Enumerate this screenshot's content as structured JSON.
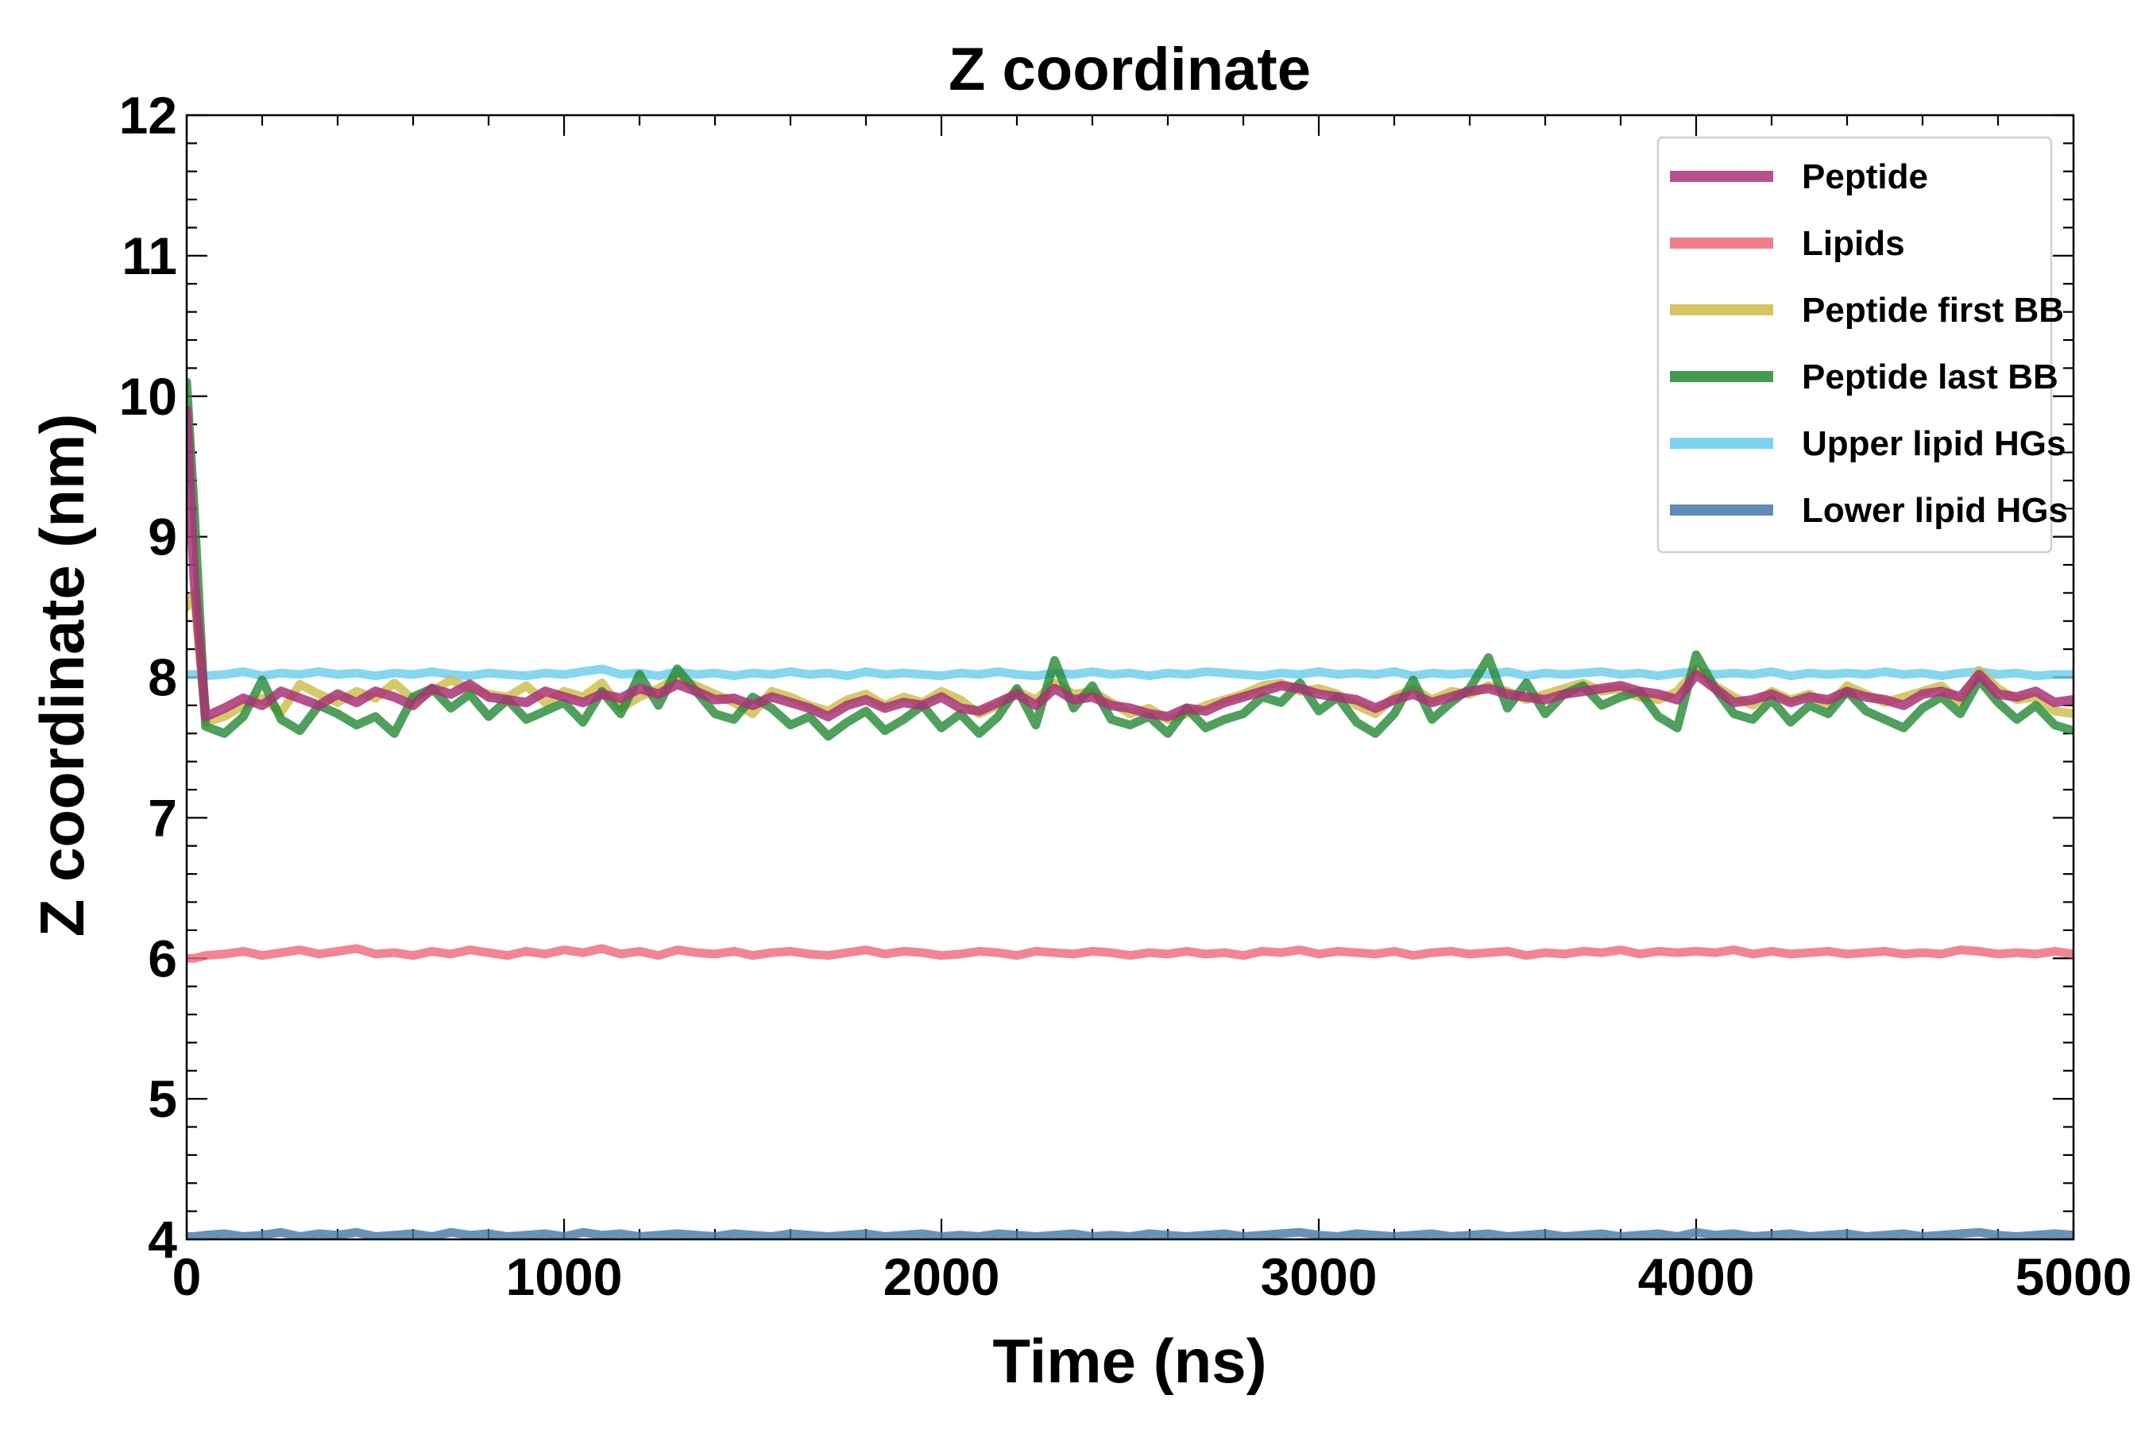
{
  "chart_data": {
    "type": "line",
    "title": "Z coordinate",
    "xlabel": "Time (ns)",
    "ylabel": "Z coordinate (nm)",
    "xlim": [
      0,
      5000
    ],
    "ylim": [
      4,
      12
    ],
    "xticks": [
      0,
      1000,
      2000,
      3000,
      4000,
      5000
    ],
    "yticks": [
      4,
      5,
      6,
      7,
      8,
      9,
      10,
      11,
      12
    ],
    "x_minor_step": 200,
    "y_minor_step": 0.2,
    "grid": false,
    "legend_position": "top-right",
    "x": [
      0,
      20,
      50,
      100,
      150,
      200,
      250,
      300,
      350,
      400,
      450,
      500,
      550,
      600,
      650,
      700,
      750,
      800,
      850,
      900,
      950,
      1000,
      1050,
      1100,
      1150,
      1200,
      1250,
      1300,
      1350,
      1400,
      1450,
      1500,
      1550,
      1600,
      1650,
      1700,
      1750,
      1800,
      1850,
      1900,
      1950,
      2000,
      2050,
      2100,
      2150,
      2200,
      2250,
      2300,
      2350,
      2400,
      2450,
      2500,
      2550,
      2600,
      2650,
      2700,
      2750,
      2800,
      2850,
      2900,
      2950,
      3000,
      3050,
      3100,
      3150,
      3200,
      3250,
      3300,
      3350,
      3400,
      3450,
      3500,
      3550,
      3600,
      3650,
      3700,
      3750,
      3800,
      3850,
      3900,
      3950,
      4000,
      4050,
      4100,
      4150,
      4200,
      4250,
      4300,
      4350,
      4400,
      4450,
      4500,
      4550,
      4600,
      4650,
      4700,
      4750,
      4800,
      4850,
      4900,
      4950,
      5000
    ],
    "series": [
      {
        "name": "Peptide",
        "color": "#aa3377",
        "values": [
          9.9,
          8.7,
          7.72,
          7.78,
          7.85,
          7.8,
          7.9,
          7.85,
          7.8,
          7.88,
          7.82,
          7.9,
          7.86,
          7.8,
          7.92,
          7.88,
          7.95,
          7.86,
          7.84,
          7.82,
          7.9,
          7.86,
          7.82,
          7.88,
          7.85,
          7.92,
          7.88,
          7.95,
          7.9,
          7.84,
          7.85,
          7.8,
          7.86,
          7.82,
          7.78,
          7.72,
          7.8,
          7.84,
          7.78,
          7.82,
          7.8,
          7.86,
          7.78,
          7.76,
          7.82,
          7.88,
          7.8,
          7.92,
          7.84,
          7.86,
          7.8,
          7.78,
          7.74,
          7.72,
          7.78,
          7.76,
          7.82,
          7.86,
          7.9,
          7.94,
          7.92,
          7.88,
          7.86,
          7.84,
          7.78,
          7.84,
          7.88,
          7.82,
          7.86,
          7.9,
          7.92,
          7.88,
          7.86,
          7.84,
          7.88,
          7.9,
          7.92,
          7.94,
          7.9,
          7.88,
          7.84,
          8.02,
          7.92,
          7.82,
          7.84,
          7.88,
          7.82,
          7.86,
          7.84,
          7.9,
          7.86,
          7.84,
          7.8,
          7.88,
          7.9,
          7.86,
          8.02,
          7.88,
          7.86,
          7.9,
          7.82,
          7.84
        ]
      },
      {
        "name": "Lipids",
        "color": "#ee6677",
        "values": [
          6.0,
          6.0,
          6.02,
          6.03,
          6.05,
          6.02,
          6.04,
          6.06,
          6.03,
          6.05,
          6.07,
          6.03,
          6.04,
          6.02,
          6.05,
          6.03,
          6.06,
          6.04,
          6.02,
          6.05,
          6.03,
          6.06,
          6.04,
          6.07,
          6.03,
          6.05,
          6.02,
          6.06,
          6.04,
          6.03,
          6.05,
          6.02,
          6.04,
          6.05,
          6.03,
          6.02,
          6.04,
          6.06,
          6.03,
          6.05,
          6.04,
          6.02,
          6.03,
          6.05,
          6.04,
          6.02,
          6.05,
          6.04,
          6.03,
          6.05,
          6.04,
          6.02,
          6.04,
          6.03,
          6.05,
          6.03,
          6.04,
          6.02,
          6.05,
          6.04,
          6.06,
          6.03,
          6.05,
          6.04,
          6.03,
          6.05,
          6.02,
          6.04,
          6.05,
          6.03,
          6.04,
          6.05,
          6.02,
          6.04,
          6.03,
          6.05,
          6.04,
          6.06,
          6.03,
          6.05,
          6.04,
          6.05,
          6.04,
          6.06,
          6.03,
          6.05,
          6.03,
          6.04,
          6.05,
          6.03,
          6.04,
          6.05,
          6.03,
          6.04,
          6.03,
          6.06,
          6.05,
          6.03,
          6.04,
          6.03,
          6.05,
          6.03
        ]
      },
      {
        "name": "Peptide first BB",
        "color": "#ccbb44",
        "values": [
          8.5,
          8.6,
          7.68,
          7.72,
          7.8,
          7.85,
          7.75,
          7.95,
          7.88,
          7.82,
          7.9,
          7.85,
          7.96,
          7.84,
          7.9,
          7.98,
          7.92,
          7.88,
          7.86,
          7.94,
          7.82,
          7.9,
          7.86,
          7.96,
          7.78,
          7.86,
          7.92,
          8.0,
          7.94,
          7.88,
          7.82,
          7.74,
          7.9,
          7.86,
          7.8,
          7.76,
          7.84,
          7.88,
          7.8,
          7.86,
          7.82,
          7.9,
          7.84,
          7.74,
          7.8,
          7.9,
          7.84,
          7.96,
          7.88,
          7.9,
          7.82,
          7.74,
          7.78,
          7.7,
          7.74,
          7.8,
          7.84,
          7.88,
          7.94,
          7.96,
          7.9,
          7.92,
          7.88,
          7.8,
          7.74,
          7.86,
          7.92,
          7.84,
          7.9,
          7.88,
          7.94,
          7.9,
          7.84,
          7.88,
          7.92,
          7.96,
          7.9,
          7.92,
          7.86,
          7.84,
          7.9,
          8.06,
          7.94,
          7.86,
          7.8,
          7.9,
          7.84,
          7.88,
          7.8,
          7.94,
          7.88,
          7.82,
          7.86,
          7.9,
          7.94,
          7.82,
          8.05,
          7.92,
          7.84,
          7.86,
          7.76,
          7.74
        ]
      },
      {
        "name": "Peptide last BB",
        "color": "#228833",
        "values": [
          10.1,
          9.2,
          7.65,
          7.6,
          7.72,
          7.98,
          7.7,
          7.62,
          7.8,
          7.74,
          7.66,
          7.72,
          7.6,
          7.86,
          7.92,
          7.78,
          7.88,
          7.72,
          7.84,
          7.7,
          7.76,
          7.82,
          7.68,
          7.9,
          7.74,
          8.02,
          7.8,
          8.06,
          7.9,
          7.74,
          7.7,
          7.86,
          7.78,
          7.66,
          7.72,
          7.58,
          7.68,
          7.76,
          7.62,
          7.7,
          7.8,
          7.64,
          7.74,
          7.6,
          7.72,
          7.92,
          7.66,
          8.12,
          7.78,
          7.94,
          7.7,
          7.66,
          7.72,
          7.6,
          7.78,
          7.64,
          7.7,
          7.74,
          7.86,
          7.82,
          7.96,
          7.76,
          7.86,
          7.68,
          7.6,
          7.74,
          7.98,
          7.7,
          7.82,
          7.92,
          8.14,
          7.78,
          7.96,
          7.74,
          7.88,
          7.94,
          7.8,
          7.86,
          7.9,
          7.72,
          7.64,
          8.16,
          7.92,
          7.74,
          7.7,
          7.84,
          7.68,
          7.8,
          7.74,
          7.9,
          7.76,
          7.7,
          7.64,
          7.78,
          7.86,
          7.74,
          7.98,
          7.82,
          7.7,
          7.8,
          7.66,
          7.62
        ]
      },
      {
        "name": "Upper lipid HGs",
        "color": "#66ccee",
        "values": [
          8.02,
          8.02,
          8.01,
          8.02,
          8.04,
          8.01,
          8.03,
          8.02,
          8.04,
          8.02,
          8.03,
          8.01,
          8.03,
          8.02,
          8.04,
          8.02,
          8.01,
          8.03,
          8.02,
          8.01,
          8.03,
          8.02,
          8.04,
          8.06,
          8.02,
          8.03,
          8.01,
          8.04,
          8.02,
          8.03,
          8.01,
          8.03,
          8.02,
          8.04,
          8.02,
          8.03,
          8.01,
          8.04,
          8.02,
          8.03,
          8.02,
          8.01,
          8.03,
          8.02,
          8.04,
          8.02,
          8.01,
          8.03,
          8.02,
          8.04,
          8.02,
          8.03,
          8.01,
          8.03,
          8.02,
          8.04,
          8.03,
          8.02,
          8.01,
          8.03,
          8.02,
          8.04,
          8.02,
          8.03,
          8.02,
          8.04,
          8.01,
          8.03,
          8.02,
          8.03,
          8.02,
          8.04,
          8.01,
          8.03,
          8.02,
          8.03,
          8.04,
          8.02,
          8.03,
          8.01,
          8.03,
          8.04,
          8.02,
          8.03,
          8.02,
          8.04,
          8.01,
          8.03,
          8.02,
          8.03,
          8.02,
          8.04,
          8.02,
          8.03,
          8.01,
          8.03,
          8.04,
          8.02,
          8.03,
          8.01,
          8.02,
          8.02
        ]
      },
      {
        "name": "Lower lipid HGs",
        "color": "#4477aa",
        "values": [
          4.02,
          4.02,
          4.03,
          4.04,
          4.02,
          4.03,
          4.05,
          4.02,
          4.04,
          4.03,
          4.05,
          4.02,
          4.03,
          4.04,
          4.02,
          4.05,
          4.03,
          4.04,
          4.02,
          4.03,
          4.04,
          4.02,
          4.05,
          4.03,
          4.04,
          4.02,
          4.03,
          4.04,
          4.03,
          4.02,
          4.04,
          4.03,
          4.02,
          4.04,
          4.03,
          4.02,
          4.03,
          4.04,
          4.02,
          4.03,
          4.04,
          4.02,
          4.03,
          4.02,
          4.04,
          4.03,
          4.02,
          4.03,
          4.04,
          4.02,
          4.03,
          4.02,
          4.04,
          4.03,
          4.02,
          4.03,
          4.04,
          4.02,
          4.03,
          4.04,
          4.05,
          4.03,
          4.02,
          4.04,
          4.03,
          4.02,
          4.03,
          4.04,
          4.02,
          4.03,
          4.04,
          4.02,
          4.03,
          4.04,
          4.02,
          4.03,
          4.04,
          4.02,
          4.03,
          4.04,
          4.02,
          4.05,
          4.03,
          4.04,
          4.02,
          4.03,
          4.04,
          4.02,
          4.03,
          4.04,
          4.02,
          4.03,
          4.04,
          4.02,
          4.03,
          4.04,
          4.05,
          4.03,
          4.02,
          4.03,
          4.04,
          4.03
        ]
      }
    ]
  }
}
